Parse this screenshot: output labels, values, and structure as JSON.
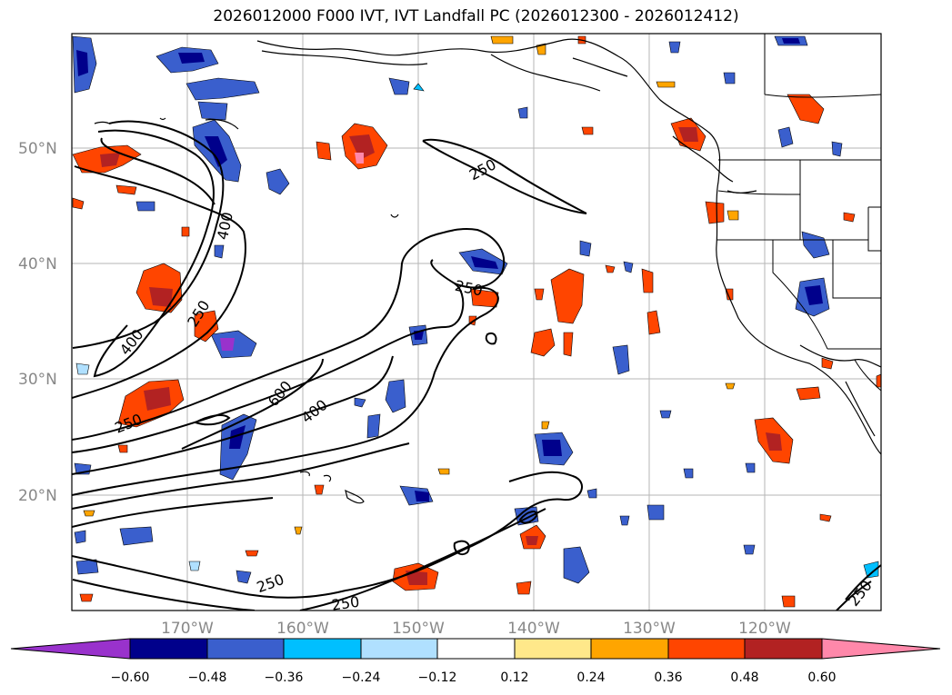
{
  "title": "2026012000 F000 IVT, IVT Landfall PC (2026012300 - 2026012412)",
  "lat_labels": [
    "50°N",
    "40°N",
    "30°N",
    "20°N"
  ],
  "lon_labels": [
    "170°W",
    "160°W",
    "150°W",
    "140°W",
    "130°W",
    "120°W"
  ],
  "contour_labels": [
    "250",
    "250",
    "250",
    "250",
    "250",
    "250",
    "400",
    "400",
    "400",
    "600",
    "250"
  ],
  "colorbar": {
    "ticks": [
      "−0.60",
      "−0.48",
      "−0.36",
      "−0.24",
      "−0.12",
      "0.12",
      "0.24",
      "0.36",
      "0.48",
      "0.60"
    ],
    "colors": [
      "#9932cc",
      "#00008b",
      "#3a5fcd",
      "#00bfff",
      "#b0e0ff",
      "#ffffff",
      "#ffe88a",
      "#ffa500",
      "#ff4500",
      "#b22222",
      "#ff88aa"
    ]
  }
}
